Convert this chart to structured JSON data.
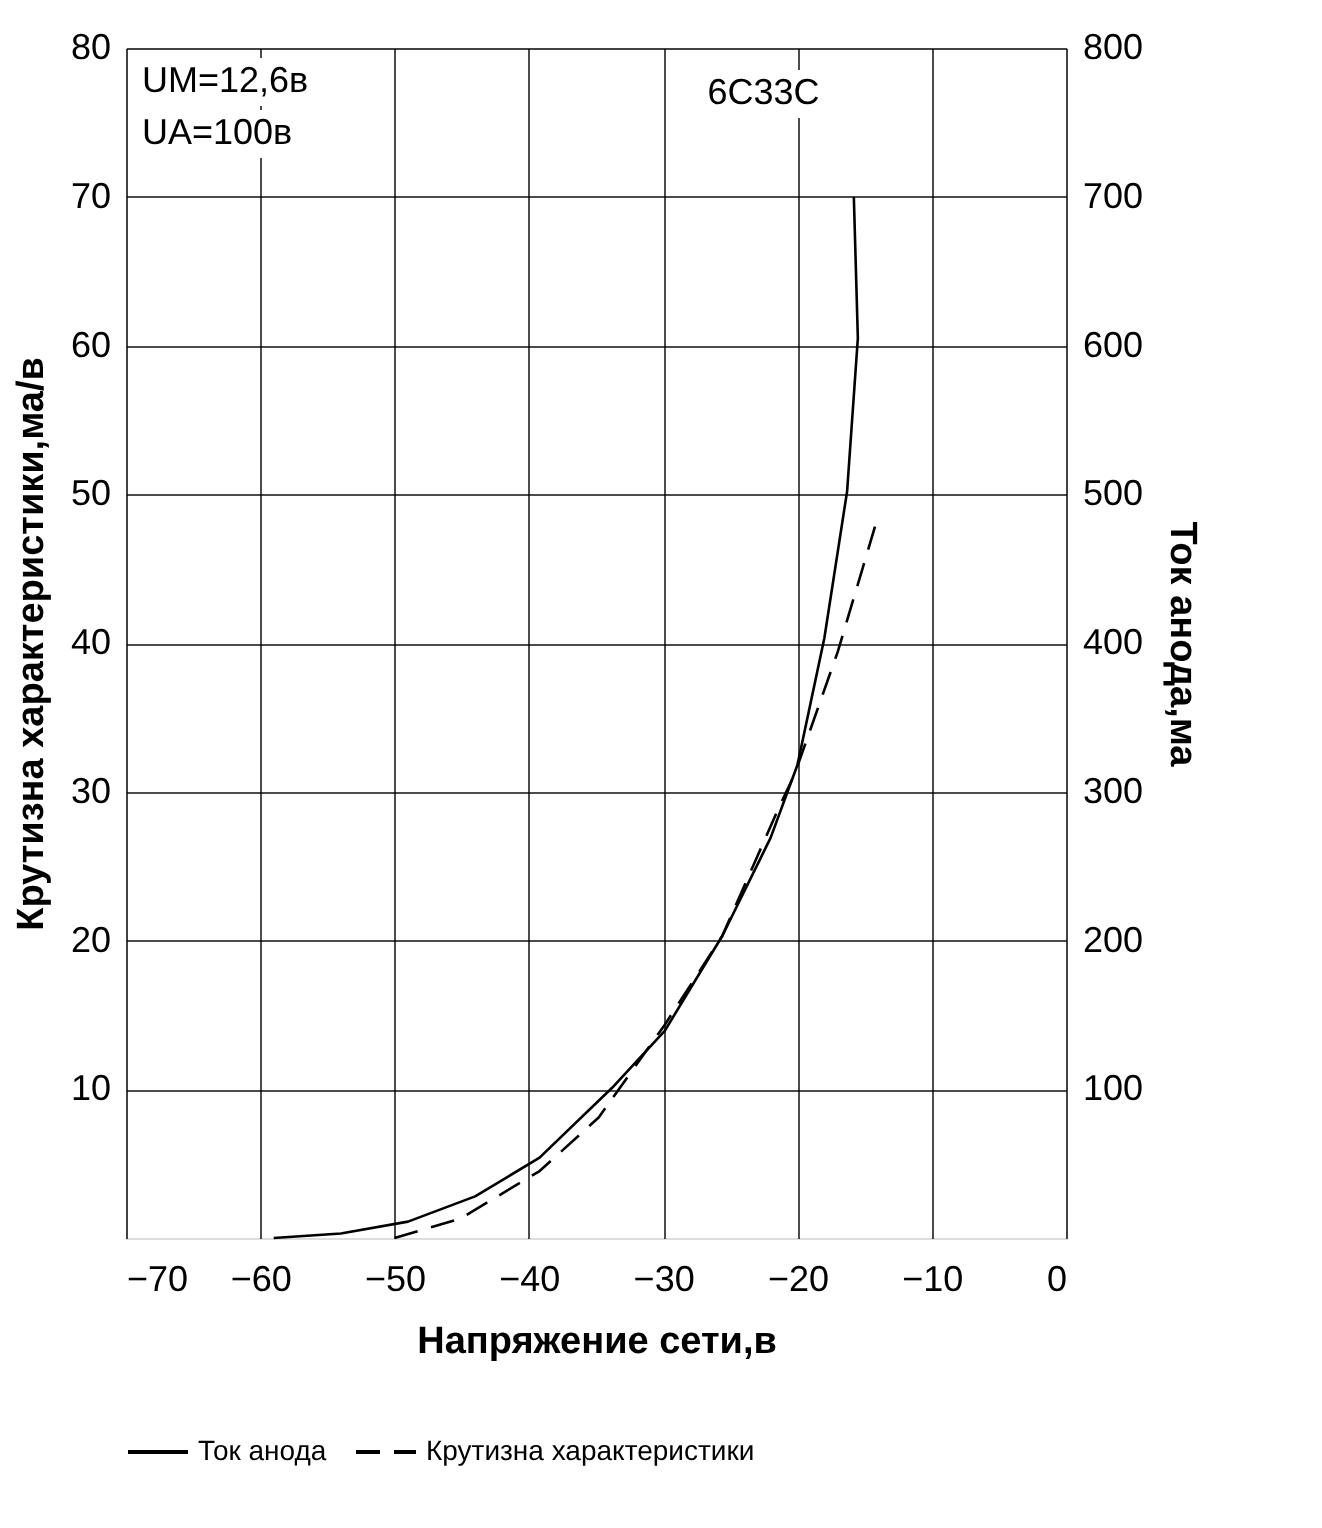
{
  "chart_data": {
    "type": "line",
    "xlabel": "Напряжение сети,в",
    "ylabel": "Крутизна характеристики,ма/в",
    "y2label": "Ток анода,ма",
    "xlim": [
      -70,
      0
    ],
    "xticks": [
      -70,
      -60,
      -50,
      -40,
      -30,
      -20,
      -10,
      0
    ],
    "ylim": [
      0,
      80
    ],
    "yticks": [
      10,
      20,
      30,
      40,
      50,
      60,
      70,
      80
    ],
    "y2lim": [
      0,
      800
    ],
    "y2ticks": [
      100,
      200,
      300,
      400,
      500,
      600,
      700,
      800
    ],
    "grid": true,
    "legend": "bottom",
    "marker": "none",
    "annotations": [
      "UM=12,6в",
      "UA=100в",
      "6C33C"
    ],
    "series": [
      {
        "name": "Ток анода",
        "color": "#000000",
        "axis": "y2",
        "line_style": "solid",
        "x": [
          -59,
          -54,
          -49,
          -44,
          -39.2,
          -33.8,
          -29.9,
          -25.6,
          -22,
          -20,
          -18,
          -16.3,
          -15.5,
          -15.8
        ],
        "values": [
          0,
          3,
          11,
          28,
          54,
          101,
          139,
          203,
          269,
          318,
          403,
          502,
          605,
          700
        ]
      },
      {
        "name": "Крутизна характеристики",
        "color": "#000000",
        "axis": "y",
        "line_style": "dashed",
        "x": [
          -50,
          -45.1,
          -39.2,
          -34.8,
          -29.9,
          -25.6,
          -21.5,
          -20.2,
          -17,
          -14.1
        ],
        "values": [
          0,
          1.3,
          4.5,
          8.1,
          14.3,
          20.3,
          28.7,
          31.2,
          39.4,
          48.2
        ]
      }
    ]
  }
}
